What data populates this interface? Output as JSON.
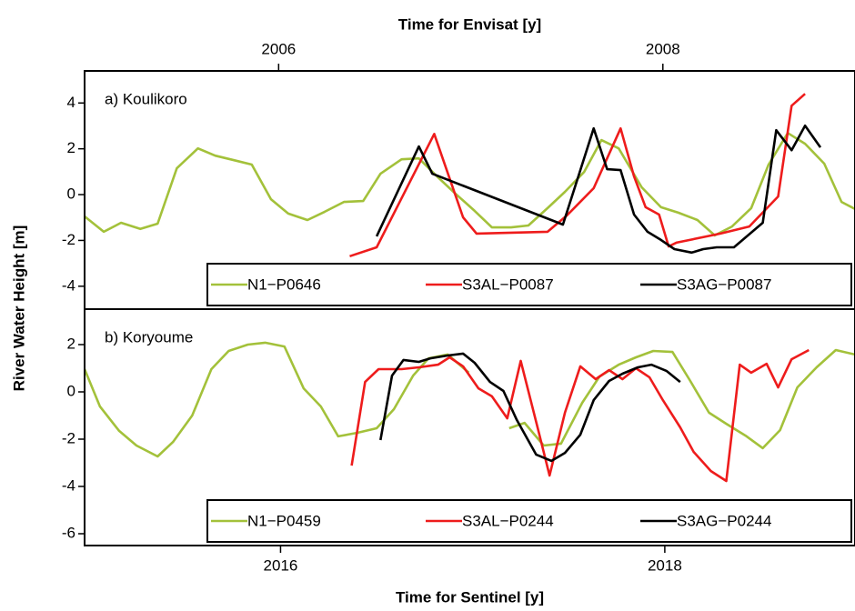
{
  "chart_data": [
    {
      "type": "line",
      "title": "a) Koulikoro",
      "x2label": "Time for Envisat [y]",
      "ylabel": "River Water Height [m]",
      "xlim": [
        2014.98,
        2018.99
      ],
      "x2lim": [
        2004.99,
        2009.0
      ],
      "x2ticks": [
        2006,
        2008
      ],
      "ylim": [
        -5.0,
        5.4
      ],
      "yticks": [
        -4,
        -2,
        0,
        2,
        4
      ],
      "legend": "lower right",
      "series": [
        {
          "name": "N1−P0646",
          "color": "#a3c13a",
          "axis": "x2",
          "x": [
            2004.99,
            2005.09,
            2005.18,
            2005.28,
            2005.37,
            2005.47,
            2005.58,
            2005.67,
            2005.77,
            2005.86,
            2005.96,
            2006.05,
            2006.15,
            2006.24,
            2006.34,
            2006.44,
            2006.53,
            2006.64,
            2006.73,
            2006.83,
            2006.92,
            2007.02,
            2007.11,
            2007.21,
            2007.3,
            2007.4,
            2007.49,
            2007.59,
            2007.68,
            2007.77,
            2007.89,
            2007.99,
            2008.08,
            2008.18,
            2008.27,
            2008.36,
            2008.46,
            2008.55,
            2008.65,
            2008.74,
            2008.84,
            2008.93,
            2009.0
          ],
          "values": [
            -0.95,
            -1.62,
            -1.23,
            -1.5,
            -1.27,
            1.15,
            2.02,
            1.7,
            1.5,
            1.31,
            -0.2,
            -0.83,
            -1.11,
            -0.75,
            -0.32,
            -0.28,
            0.91,
            1.54,
            1.58,
            0.75,
            0.04,
            -0.71,
            -1.43,
            -1.43,
            -1.35,
            -0.59,
            0.12,
            0.99,
            2.38,
            2.02,
            0.32,
            -0.55,
            -0.79,
            -1.11,
            -1.78,
            -1.39,
            -0.59,
            1.31,
            2.69,
            2.22,
            1.35,
            -0.32,
            -0.63
          ]
        },
        {
          "name": "S3AL−P0087",
          "color": "#ee1c1c",
          "x": [
            2016.36,
            2016.5,
            2016.8,
            2016.95,
            2017.02,
            2017.39,
            2017.49,
            2017.63,
            2017.77,
            2017.84,
            2017.9,
            2017.97,
            2018.02,
            2018.06,
            2018.29,
            2018.44,
            2018.59,
            2018.66,
            2018.73
          ],
          "values": [
            -2.69,
            -2.3,
            2.65,
            -0.99,
            -1.7,
            -1.62,
            -0.91,
            0.28,
            2.89,
            0.79,
            -0.55,
            -0.87,
            -2.26,
            -2.1,
            -1.7,
            -1.39,
            -0.08,
            3.88,
            4.4
          ]
        },
        {
          "name": "S3AG−P0087",
          "color": "#000000",
          "x": [
            2016.5,
            2016.72,
            2016.79,
            2017.47,
            2017.63,
            2017.7,
            2017.77,
            2017.84,
            2017.91,
            2017.98,
            2018.05,
            2018.14,
            2018.2,
            2018.27,
            2018.36,
            2018.51,
            2018.58,
            2018.66,
            2018.73,
            2018.81
          ],
          "values": [
            -1.82,
            2.1,
            0.91,
            -1.31,
            2.89,
            1.11,
            1.07,
            -0.87,
            -1.62,
            -1.98,
            -2.38,
            -2.53,
            -2.38,
            -2.3,
            -2.3,
            -1.23,
            2.81,
            1.94,
            3.01,
            2.06
          ]
        }
      ]
    },
    {
      "type": "line",
      "title": "b) Koryoume",
      "xlabel": "Time for Sentinel [y]",
      "xlim": [
        2014.98,
        2018.99
      ],
      "x2lim": [
        2004.99,
        2009.0
      ],
      "xticks": [
        2016,
        2018
      ],
      "ylim": [
        -6.5,
        3.5
      ],
      "yticks": [
        -6,
        -4,
        -2,
        0,
        2
      ],
      "legend": "lower right",
      "series": [
        {
          "name": "N1−P0459",
          "color": "#a3c13a",
          "axis": "x2",
          "x": [
            2004.99,
            2005.07,
            2005.17,
            2005.26,
            2005.37,
            2005.45,
            2005.55,
            2005.65,
            2005.74,
            2005.84,
            2005.93,
            2006.03,
            2006.13,
            2006.22,
            2006.31,
            2006.41,
            2006.51,
            2006.6,
            2006.7,
            2006.78,
            2006.88,
            2006.99,
            2007.1,
            2007.2,
            2007.28,
            2007.38,
            2007.47,
            2007.58,
            2007.67,
            2007.77,
            2007.86,
            2007.95,
            2008.05,
            2008.14,
            2008.24,
            2008.33,
            2008.43,
            2008.52,
            2008.61,
            2008.7,
            2008.8,
            2008.9,
            2009.0
          ],
          "values": [
            0.96,
            -0.62,
            -1.65,
            -2.27,
            -2.73,
            -2.12,
            -1.0,
            0.96,
            1.73,
            2.0,
            2.08,
            1.92,
            0.15,
            -0.62,
            -1.88,
            -1.73,
            -1.54,
            -0.73,
            0.69,
            1.42,
            1.58,
            0.81,
            null,
            -1.54,
            -1.31,
            -2.27,
            -2.19,
            -0.46,
            0.65,
            1.15,
            1.46,
            1.73,
            1.69,
            0.5,
            -0.88,
            -1.35,
            -1.85,
            -2.38,
            -1.62,
            0.19,
            1.04,
            1.77,
            1.58
          ]
        },
        {
          "name": "S3AL−P0244",
          "color": "#ee1c1c",
          "x": [
            2016.37,
            2016.44,
            2016.51,
            2016.63,
            2016.72,
            2016.82,
            2016.88,
            2016.95,
            2017.03,
            2017.1,
            2017.18,
            2017.25,
            2017.34,
            2017.4,
            2017.48,
            2017.56,
            2017.64,
            2017.71,
            2017.78,
            2017.85,
            2017.92,
            2017.99,
            2018.08,
            2018.15,
            2018.24,
            2018.32,
            2018.39,
            2018.45,
            2018.53,
            2018.59,
            2018.66,
            2018.75
          ],
          "values": [
            -3.12,
            0.42,
            0.96,
            0.96,
            1.04,
            1.15,
            1.46,
            1.08,
            0.15,
            -0.19,
            -1.12,
            1.31,
            -1.58,
            -3.54,
            -0.88,
            1.08,
            0.54,
            0.92,
            0.54,
            1.0,
            0.62,
            -0.35,
            -1.5,
            -2.54,
            -3.35,
            -3.77,
            1.15,
            0.81,
            1.19,
            0.19,
            1.38,
            1.77
          ]
        },
        {
          "name": "S3AG−P0244",
          "color": "#000000",
          "x": [
            2016.52,
            2016.58,
            2016.64,
            2016.72,
            2016.78,
            2016.87,
            2016.95,
            2017.01,
            2017.09,
            2017.16,
            2017.23,
            2017.33,
            2017.41,
            2017.48,
            2017.56,
            2017.63,
            2017.71,
            2017.78,
            2017.86,
            2017.93,
            2018.01,
            2018.08
          ],
          "values": [
            -2.04,
            0.69,
            1.35,
            1.27,
            1.42,
            1.54,
            1.62,
            1.23,
            0.42,
            0.04,
            -1.19,
            -2.65,
            -2.92,
            -2.58,
            -1.81,
            -0.35,
            0.46,
            0.77,
            1.04,
            1.15,
            0.88,
            0.42
          ]
        }
      ]
    }
  ]
}
